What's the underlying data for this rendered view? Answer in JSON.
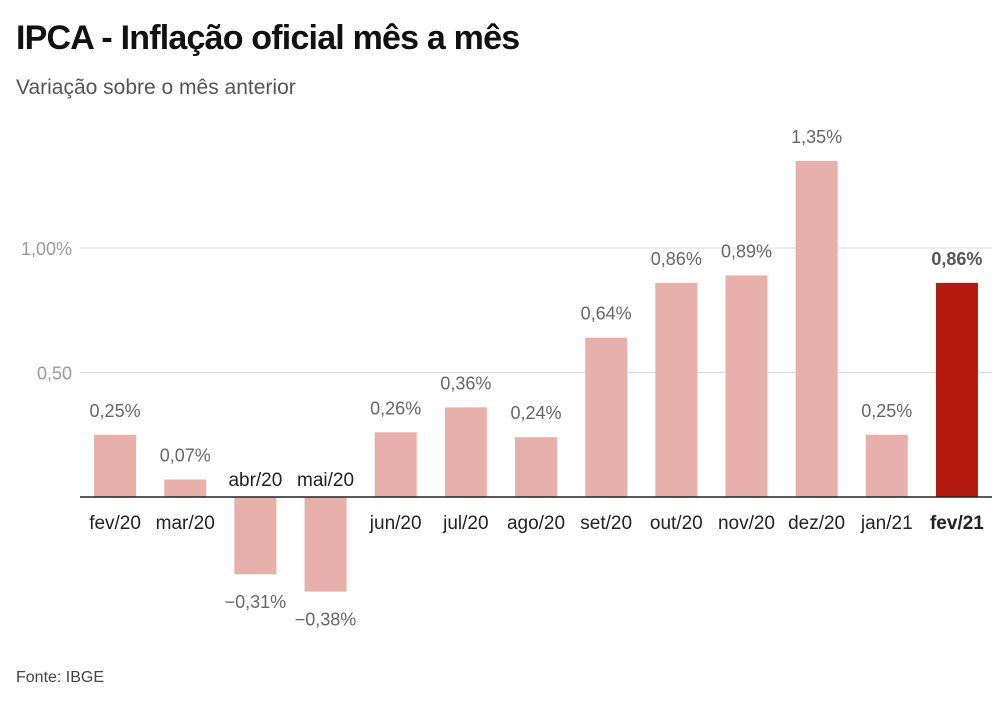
{
  "title": "IPCA - Inflação oficial mês a mês",
  "subtitle": "Variação sobre o mês anterior",
  "source": "Fonte: IBGE",
  "colors": {
    "bar": "#e8b0aa",
    "bar_highlight": "#b51a10",
    "gridline": "#dddddd",
    "axis": "#222222",
    "tick_label": "#9a9a9a",
    "value_label": "#666666"
  },
  "chart_data": {
    "type": "bar",
    "title": "IPCA - Inflação oficial mês a mês",
    "subtitle": "Variação sobre o mês anterior",
    "categories": [
      "fev/20",
      "mar/20",
      "abr/20",
      "mai/20",
      "jun/20",
      "jul/20",
      "ago/20",
      "set/20",
      "out/20",
      "nov/20",
      "dez/20",
      "jan/21",
      "fev/21"
    ],
    "values": [
      0.25,
      0.07,
      -0.31,
      -0.38,
      0.26,
      0.36,
      0.24,
      0.64,
      0.86,
      0.89,
      1.35,
      0.25,
      0.86
    ],
    "value_labels": [
      "0,25%",
      "0,07%",
      "−0,31%",
      "−0,38%",
      "0,26%",
      "0,36%",
      "0,24%",
      "0,64%",
      "0,86%",
      "0,89%",
      "1,35%",
      "0,25%",
      "0,86%"
    ],
    "highlight_index": 12,
    "y_ticks": [
      {
        "value": 0.5,
        "label": "0,50"
      },
      {
        "value": 1.0,
        "label": "1,00%"
      }
    ],
    "ylim": [
      -0.45,
      1.45
    ],
    "xlabel": "",
    "ylabel": "",
    "grid": true,
    "legend": "none"
  }
}
